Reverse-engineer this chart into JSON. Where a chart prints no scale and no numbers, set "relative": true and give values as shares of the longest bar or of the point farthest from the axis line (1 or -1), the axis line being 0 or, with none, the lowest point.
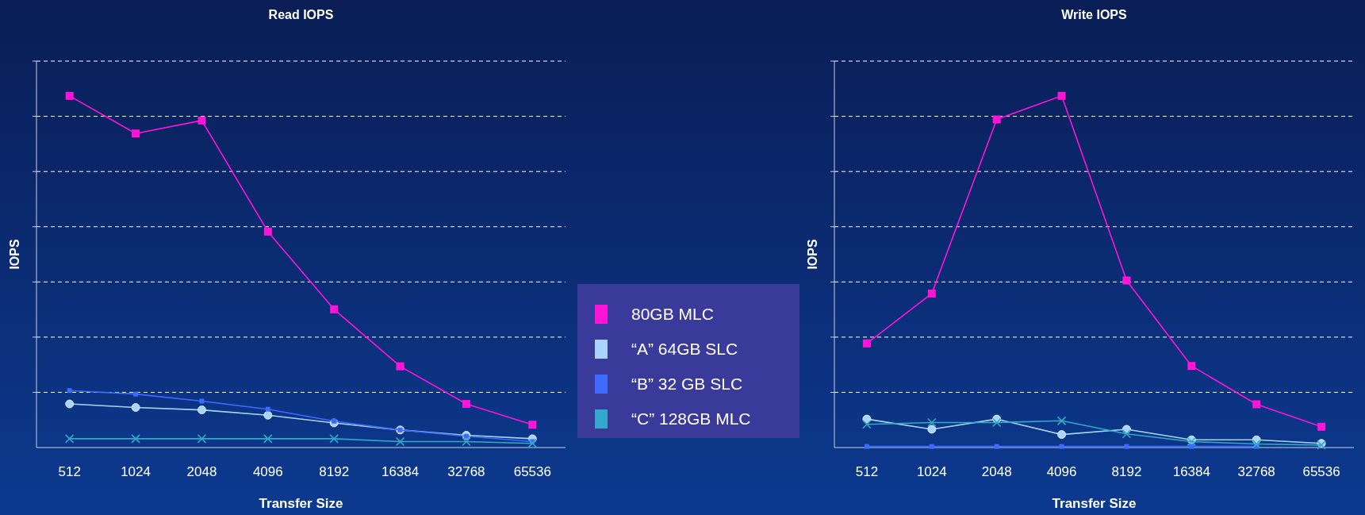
{
  "chart_data": [
    {
      "type": "line",
      "title": "Read IOPS",
      "xlabel": "Transfer Size",
      "ylabel": "IOPS",
      "relative": true,
      "grid": "y",
      "legend": "right",
      "categories": [
        "512",
        "1024",
        "2048",
        "4096",
        "8192",
        "16384",
        "32768",
        "65536"
      ],
      "series": [
        {
          "name": "80GB MLC",
          "color": "#ff14d8",
          "marker": "square",
          "values": [
            1,
            0.893,
            0.93,
            0.614,
            0.393,
            0.231,
            0.124,
            0.065
          ]
        },
        {
          "name": "“A” 64GB SLC",
          "color": "#a8d4ff",
          "marker": "circle",
          "values": [
            0.124,
            0.114,
            0.107,
            0.092,
            0.07,
            0.05,
            0.035,
            0.025
          ]
        },
        {
          "name": "“B” 32 GB SLC",
          "color": "#3d6bff",
          "marker": "square",
          "values": [
            0.162,
            0.152,
            0.132,
            0.109,
            0.075,
            0.05,
            0.032,
            0.017
          ]
        },
        {
          "name": "“C” 128GB MLC",
          "color": "#33a8c8",
          "marker": "cross",
          "values": [
            0.025,
            0.025,
            0.025,
            0.025,
            0.025,
            0.017,
            0.017,
            0.012
          ]
        }
      ]
    },
    {
      "type": "line",
      "title": "Write IOPS",
      "xlabel": "Transfer Size",
      "ylabel": "IOPS",
      "relative": true,
      "grid": "y",
      "categories": [
        "512",
        "1024",
        "2048",
        "4096",
        "8192",
        "16384",
        "32768",
        "65536"
      ],
      "series": [
        {
          "color": "#ff14d8",
          "marker": "square",
          "values": [
            0.296,
            0.438,
            0.933,
            1,
            0.475,
            0.232,
            0.123,
            0.059
          ]
        },
        {
          "color": "#a8d4ff",
          "marker": "circle",
          "values": [
            0.081,
            0.052,
            0.081,
            0.037,
            0.052,
            0.022,
            0.022,
            0.012
          ]
        },
        {
          "color": "#3d6bff",
          "marker": "square",
          "values": [
            0.003,
            0.003,
            0.003,
            0.003,
            0.003,
            0.003,
            0.003,
            null
          ]
        },
        {
          "color": "#33a8c8",
          "marker": "cross",
          "values": [
            0.066,
            0.071,
            0.071,
            0.076,
            0.039,
            0.017,
            0.01,
            0.007
          ]
        }
      ]
    }
  ]
}
